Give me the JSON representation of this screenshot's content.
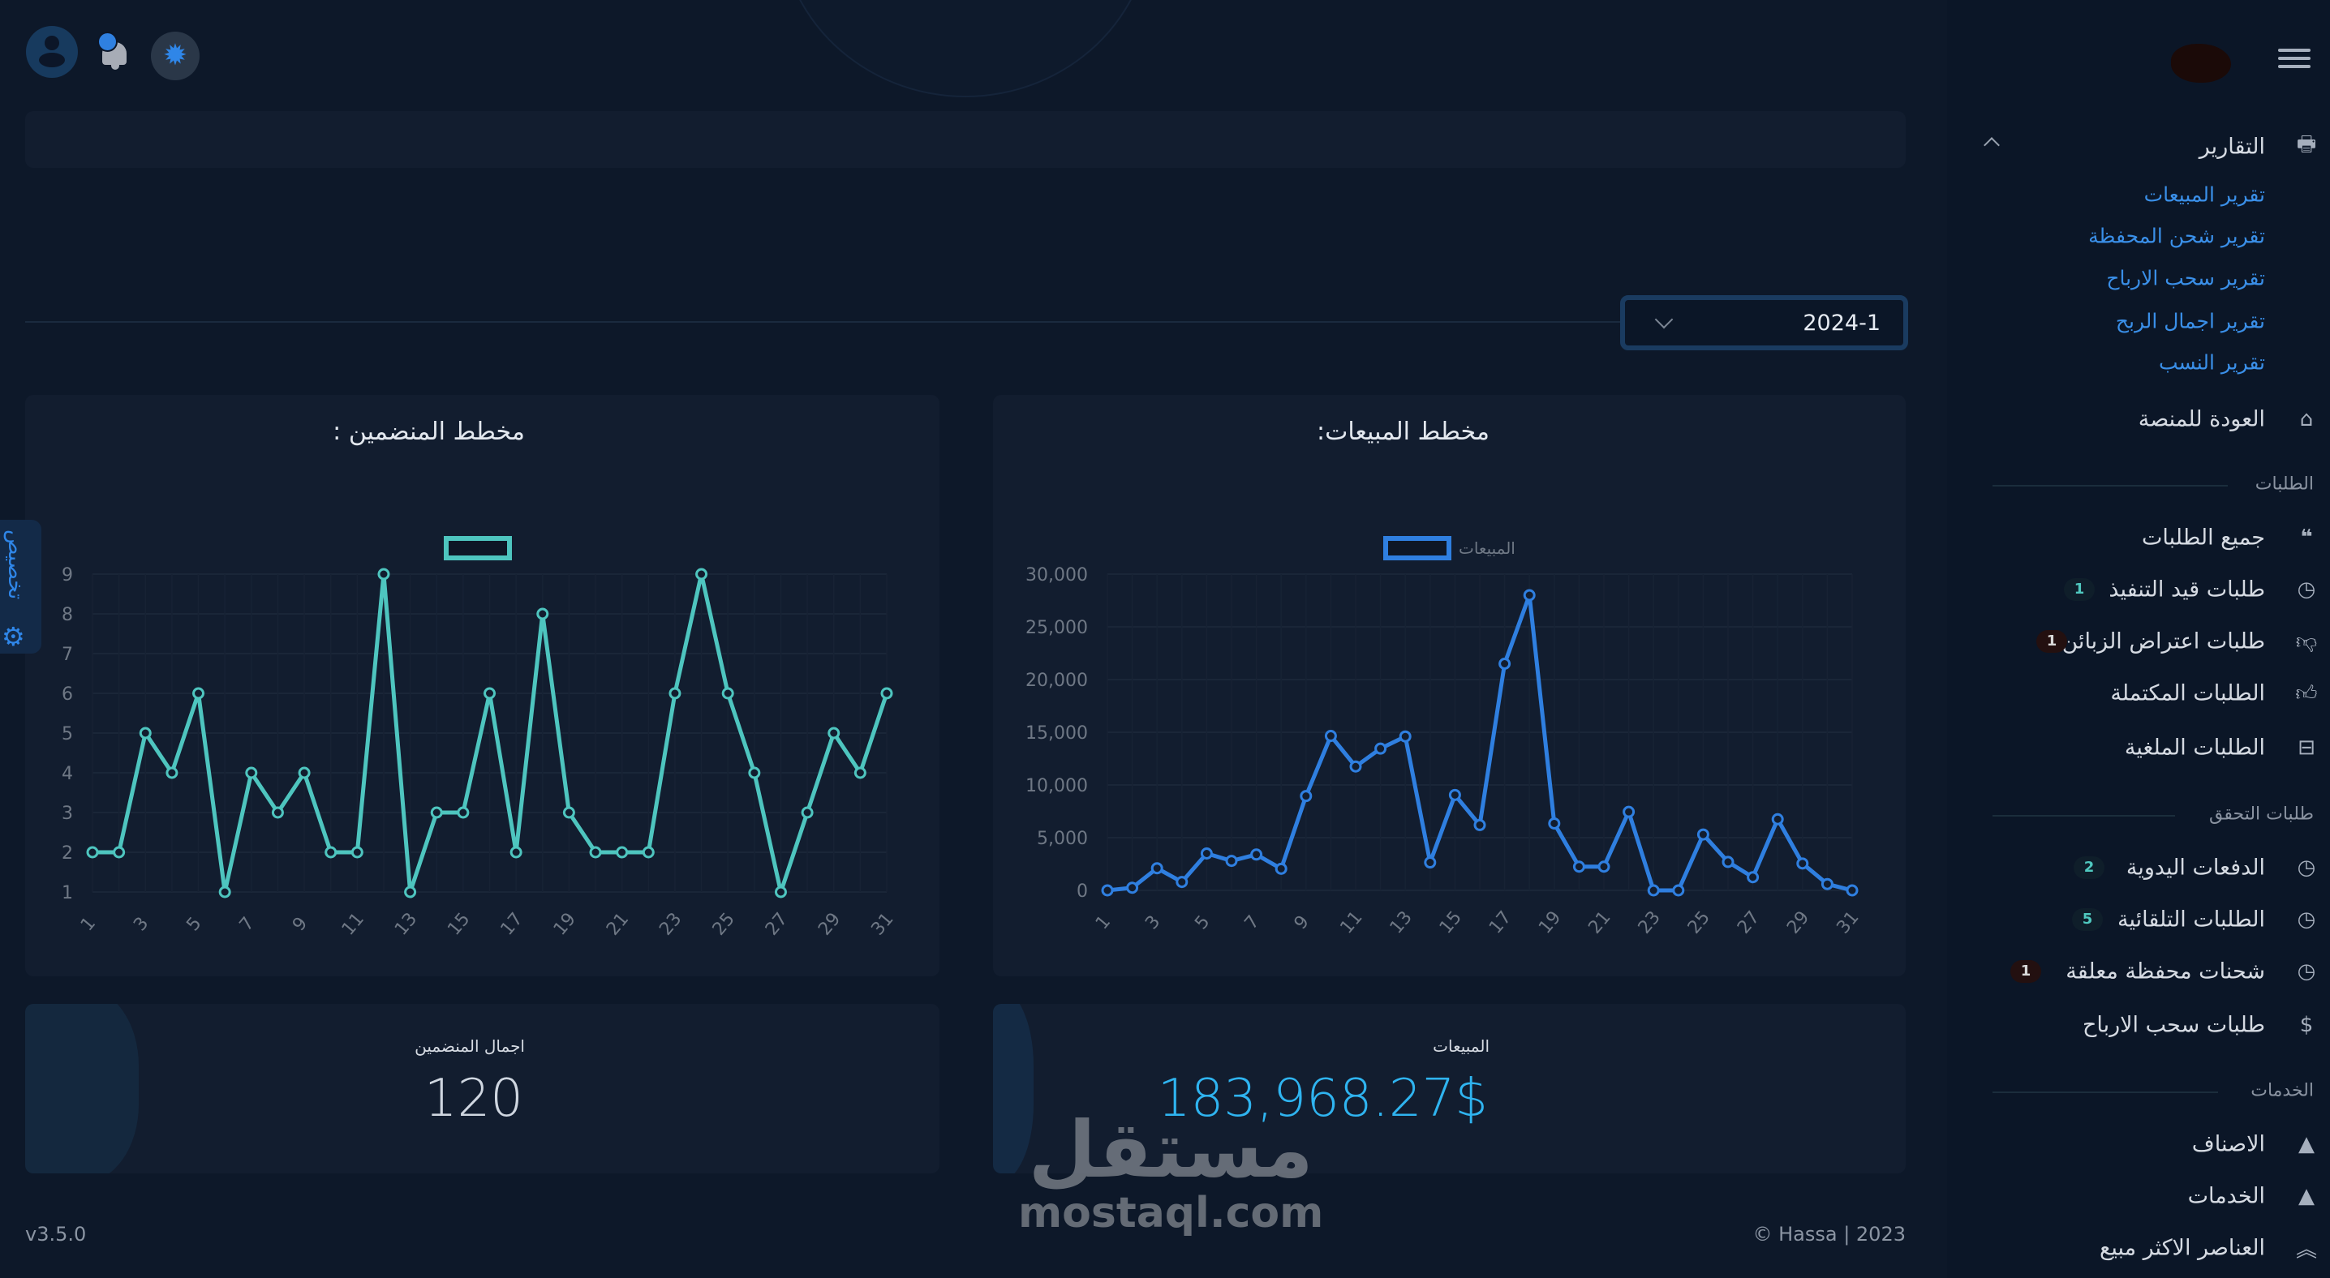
{
  "header": {
    "icons": [
      "user-avatar-icon",
      "bell-icon",
      "gear-icon",
      "menu-icon"
    ],
    "accent": "#2f86e8"
  },
  "filter": {
    "month_value": "2024-1"
  },
  "side_tab": {
    "label": "تخصيص"
  },
  "sales_chart": {
    "title": "مخطط المبيعات:",
    "chart_data": {
      "type": "line",
      "title": "",
      "legend": "top",
      "series": [
        {
          "name": "المبيعات",
          "color": "#2f7fe0",
          "values": [
            0,
            250,
            2100,
            800,
            3500,
            2800,
            3400,
            2050,
            8950,
            14650,
            11750,
            13450,
            14600,
            2650,
            9050,
            6200,
            21500,
            28000,
            6350,
            2250,
            2250,
            7450,
            0,
            0,
            5300,
            2700,
            1250,
            6750,
            2550,
            600,
            0
          ]
        }
      ],
      "x": [
        1,
        2,
        3,
        4,
        5,
        6,
        7,
        8,
        9,
        10,
        11,
        12,
        13,
        14,
        15,
        16,
        17,
        18,
        19,
        20,
        21,
        22,
        23,
        24,
        25,
        26,
        27,
        28,
        29,
        30,
        31
      ],
      "x_tick_labels": [
        "1",
        "3",
        "5",
        "7",
        "9",
        "11",
        "13",
        "15",
        "17",
        "19",
        "21",
        "23",
        "25",
        "27",
        "29",
        "31"
      ],
      "y_tick_labels": [
        "0",
        "5,000",
        "10,000",
        "15,000",
        "20,000",
        "25,000",
        "30,000"
      ],
      "ylim": [
        0,
        30000
      ],
      "grid": true
    }
  },
  "subscribers_chart": {
    "title": "مخطط المنضمين :",
    "chart_data": {
      "type": "line",
      "title": "",
      "legend": "top",
      "series": [
        {
          "name": "",
          "color": "#4ec5bf",
          "values": [
            2,
            2,
            5,
            4,
            6,
            1,
            4,
            3,
            4,
            2,
            2,
            9,
            1,
            3,
            3,
            6,
            2,
            8,
            3,
            2,
            2,
            2,
            6,
            9,
            6,
            4,
            1,
            3,
            5,
            4,
            6
          ]
        }
      ],
      "x": [
        1,
        2,
        3,
        4,
        5,
        6,
        7,
        8,
        9,
        10,
        11,
        12,
        13,
        14,
        15,
        16,
        17,
        18,
        19,
        20,
        21,
        22,
        23,
        24,
        25,
        26,
        27,
        28,
        29,
        30,
        31
      ],
      "x_tick_labels": [
        "1",
        "3",
        "5",
        "7",
        "9",
        "11",
        "13",
        "15",
        "17",
        "19",
        "21",
        "23",
        "25",
        "27",
        "29",
        "31"
      ],
      "y_tick_labels": [
        "1",
        "2",
        "3",
        "4",
        "5",
        "6",
        "7",
        "8",
        "9"
      ],
      "ylim": [
        1,
        9
      ],
      "grid": true
    }
  },
  "stats": {
    "sales": {
      "label": "المبيعات",
      "value": "183,968.27$",
      "color": "#2fb4f0"
    },
    "subscribers": {
      "label": "اجمال المنضمين",
      "value": "120"
    }
  },
  "footer": {
    "version": "v3.5.0",
    "copyright": "© Hassa | 2023"
  },
  "watermark": {
    "arabic": "مستقل",
    "latin": "mostaql.com"
  },
  "sidebar": {
    "reports": {
      "label": "التقارير",
      "icon": "printer-icon",
      "items": [
        "تقرير المبيعات",
        "تقرير شحن المحفظة",
        "تقرير سحب الارباح",
        "تقرير اجمال الربح",
        "تقرير النسب"
      ]
    },
    "back": {
      "label": "العودة للمنصة",
      "icon": "home-icon"
    },
    "orders_section": "الطلبات",
    "orders": [
      {
        "label": "جميع الطلبات",
        "icon": "quote-icon"
      },
      {
        "label": "طلبات قيد التنفيذ",
        "icon": "clock-icon",
        "badge": "1"
      },
      {
        "label": "طلبات اعتراض الزبائن",
        "icon": "thumbs-down-icon",
        "badge": "1"
      },
      {
        "label": "الطلبات المكتملة",
        "icon": "thumbs-up-icon"
      },
      {
        "label": "الطلبات الملغية",
        "icon": "minus-square-icon"
      }
    ],
    "verify_section": "طلبات التحقق",
    "verify": [
      {
        "label": "الدفعات اليدوية",
        "icon": "clock-icon",
        "badge": "2"
      },
      {
        "label": "الطلبات التلقائية",
        "icon": "clock-icon",
        "badge": "5"
      },
      {
        "label": "شحنات محفظة معلقة",
        "icon": "clock-icon",
        "badge": "1"
      },
      {
        "label": "طلبات سحب الارباح",
        "icon": "hand-dollar-icon"
      }
    ],
    "services_section": "الخدمات",
    "services": [
      {
        "label": "الاصناف",
        "icon": "shapes-icon"
      },
      {
        "label": "الخدمات",
        "icon": "shapes-icon"
      },
      {
        "label": "العناصر الاكثر مبيع",
        "icon": "double-chevron-up-icon"
      }
    ]
  }
}
